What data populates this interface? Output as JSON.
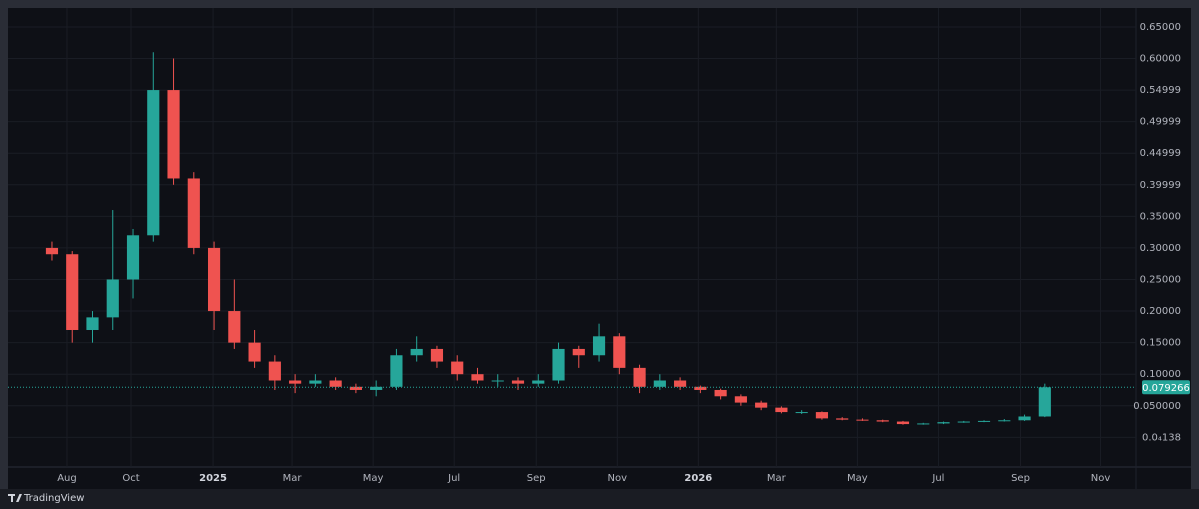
{
  "chart_data": {
    "type": "candlestick",
    "branding": "TradingView",
    "up_color": "#26a69a",
    "down_color": "#ef5350",
    "grid": true,
    "open": [
      0.3,
      0.29,
      0.17,
      0.19,
      0.25,
      0.32,
      0.55,
      0.41,
      0.3,
      0.2,
      0.15,
      0.12,
      0.09,
      0.085,
      0.09,
      0.08,
      0.075,
      0.08,
      0.13,
      0.14,
      0.12,
      0.1,
      0.09,
      0.09,
      0.085,
      0.09,
      0.14,
      0.13,
      0.16,
      0.11,
      0.08,
      0.09,
      0.08,
      0.075,
      0.065,
      0.055,
      0.047,
      0.04,
      0.04,
      0.03,
      0.028,
      0.027,
      0.025,
      0.021,
      0.022,
      0.024,
      0.025,
      0.026,
      0.027,
      0.033
    ],
    "high": [
      0.31,
      0.295,
      0.2,
      0.36,
      0.33,
      0.61,
      0.6,
      0.42,
      0.31,
      0.25,
      0.17,
      0.13,
      0.1,
      0.1,
      0.095,
      0.085,
      0.09,
      0.14,
      0.16,
      0.145,
      0.13,
      0.11,
      0.1,
      0.095,
      0.1,
      0.15,
      0.145,
      0.18,
      0.165,
      0.115,
      0.1,
      0.095,
      0.082,
      0.077,
      0.068,
      0.058,
      0.049,
      0.043,
      0.041,
      0.032,
      0.03,
      0.028,
      0.026,
      0.023,
      0.025,
      0.026,
      0.027,
      0.029,
      0.036,
      0.085
    ],
    "low": [
      0.28,
      0.15,
      0.15,
      0.17,
      0.22,
      0.31,
      0.4,
      0.29,
      0.17,
      0.14,
      0.11,
      0.075,
      0.07,
      0.08,
      0.075,
      0.07,
      0.065,
      0.075,
      0.12,
      0.11,
      0.09,
      0.085,
      0.08,
      0.075,
      0.08,
      0.085,
      0.11,
      0.12,
      0.1,
      0.07,
      0.075,
      0.075,
      0.07,
      0.06,
      0.05,
      0.043,
      0.038,
      0.037,
      0.028,
      0.027,
      0.026,
      0.024,
      0.02,
      0.02,
      0.021,
      0.023,
      0.024,
      0.025,
      0.026,
      0.032
    ],
    "close": [
      0.29,
      0.17,
      0.19,
      0.25,
      0.32,
      0.55,
      0.41,
      0.3,
      0.2,
      0.15,
      0.12,
      0.09,
      0.085,
      0.09,
      0.08,
      0.075,
      0.08,
      0.13,
      0.14,
      0.12,
      0.1,
      0.09,
      0.09,
      0.085,
      0.09,
      0.14,
      0.13,
      0.16,
      0.11,
      0.08,
      0.09,
      0.08,
      0.075,
      0.065,
      0.055,
      0.047,
      0.04,
      0.04,
      0.03,
      0.028,
      0.027,
      0.025,
      0.021,
      0.022,
      0.024,
      0.025,
      0.026,
      0.027,
      0.033,
      0.079266
    ],
    "xlim": [
      -2.17,
      53.5
    ],
    "xticks": [
      {
        "value": 0.74,
        "label": "Aug"
      },
      {
        "value": 3.9,
        "label": "Oct"
      },
      {
        "value": 7.95,
        "label": "2025"
      },
      {
        "value": 11.85,
        "label": "Mar"
      },
      {
        "value": 15.85,
        "label": "May"
      },
      {
        "value": 19.85,
        "label": "Jul"
      },
      {
        "value": 23.9,
        "label": "Sep"
      },
      {
        "value": 27.9,
        "label": "Nov"
      },
      {
        "value": 31.9,
        "label": "2026"
      },
      {
        "value": 35.75,
        "label": "Mar"
      },
      {
        "value": 39.75,
        "label": "May"
      },
      {
        "value": 43.75,
        "label": "Jul"
      },
      {
        "value": 47.8,
        "label": "Sep"
      },
      {
        "value": 51.75,
        "label": "Nov"
      }
    ],
    "ylim": [
      -0.047,
      0.68
    ],
    "yticks": [
      {
        "value": 0.65,
        "label": "0.65000"
      },
      {
        "value": 0.6,
        "label": "0.60000"
      },
      {
        "value": 0.55,
        "label": "0.54999"
      },
      {
        "value": 0.5,
        "label": "0.49999"
      },
      {
        "value": 0.45,
        "label": "0.44999"
      },
      {
        "value": 0.4,
        "label": "0.39999"
      },
      {
        "value": 0.35,
        "label": "0.35000"
      },
      {
        "value": 0.3,
        "label": "0.30000"
      },
      {
        "value": 0.25,
        "label": "0.25000"
      },
      {
        "value": 0.2,
        "label": "0.20000"
      },
      {
        "value": 0.15,
        "label": "0.15000"
      },
      {
        "value": 0.1,
        "label": "0.10000"
      },
      {
        "value": 0.05,
        "label": "0.050000"
      },
      {
        "value": 1.38e-05,
        "label": "0.0₄138"
      }
    ]
  }
}
